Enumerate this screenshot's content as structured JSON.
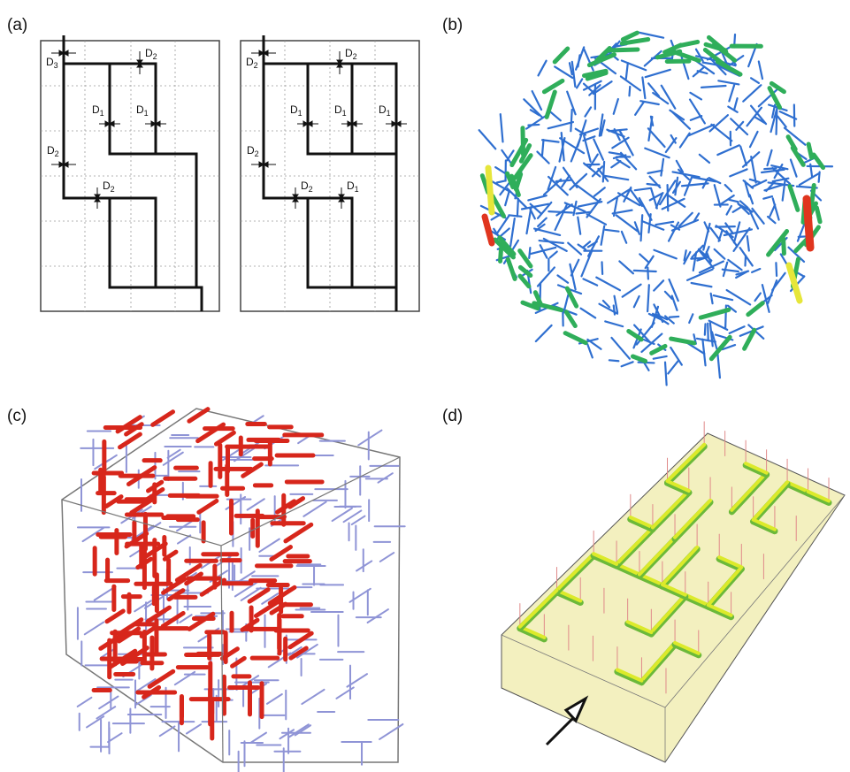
{
  "panels": {
    "a": {
      "label": "(a)"
    },
    "b": {
      "label": "(b)"
    },
    "c": {
      "label": "(c)"
    },
    "d": {
      "label": "(d)"
    }
  },
  "panel_a": {
    "left_labels": [
      [
        "D",
        "3"
      ],
      [
        "D",
        "2"
      ],
      [
        "D",
        "1"
      ],
      [
        "D",
        "1"
      ],
      [
        "D",
        "2"
      ],
      [
        "D",
        "2"
      ]
    ],
    "right_labels": [
      [
        "D",
        "2"
      ],
      [
        "D",
        "2"
      ],
      [
        "D",
        "1"
      ],
      [
        "D",
        "1"
      ],
      [
        "D",
        "1"
      ],
      [
        "D",
        "2"
      ],
      [
        "D",
        "2"
      ],
      [
        "D",
        "1"
      ]
    ]
  },
  "colors": {
    "frame": "#444444",
    "path": "#111111",
    "grid": "#9a9a9a",
    "sphere_blue": "#2f6fd0",
    "sphere_green": "#2fae5a",
    "sphere_yellow": "#e6e63a",
    "sphere_red": "#e0351e",
    "cube_red": "#d7261b",
    "cube_blue": "#8f94d6",
    "box_fill": "#f3f0bf",
    "rod_yellow": "#dcea2a",
    "rod_green": "#6bb93a"
  }
}
